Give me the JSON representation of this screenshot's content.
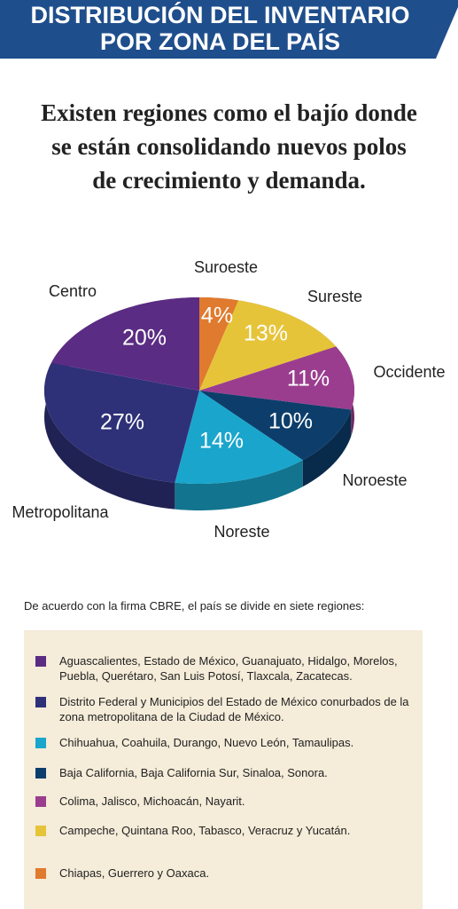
{
  "header": {
    "title_lines": [
      "DISTRIBUCIÓN DEL INVENTARIO",
      "POR ZONA DEL PAÍS"
    ]
  },
  "subtitle_lines": [
    "Existen regiones como el bajío donde",
    "se están consolidando nuevos polos",
    "de crecimiento y demanda."
  ],
  "chart_data": {
    "type": "pie",
    "categories": [
      "Suroeste",
      "Sureste",
      "Occidente",
      "Noroeste",
      "Noreste",
      "Metropolitana",
      "Centro"
    ],
    "values": [
      4,
      13,
      11,
      10,
      14,
      27,
      20
    ],
    "value_labels": [
      "4%",
      "13%",
      "11%",
      "10%",
      "14%",
      "27%",
      "20%"
    ],
    "colors": [
      "#e07a2e",
      "#e6c43a",
      "#9b3d8f",
      "#0d3e6b",
      "#1aa6cc",
      "#2e3178",
      "#5b2c83"
    ]
  },
  "regions_note": "De acuerdo con la firma CBRE, el país se divide en siete regiones:",
  "regions": [
    {
      "color": "#5b2c83",
      "text": "Aguascalientes, Estado de México, Guanajuato, Hidalgo, Morelos, Puebla, Querétaro, San Luis Potosí, Tlaxcala, Zacatecas."
    },
    {
      "color": "#2e3178",
      "text": "Distrito Federal y Municipios del Estado de México conurbados de la zona metropolitana de la Ciudad de México."
    },
    {
      "color": "#1aa6cc",
      "text": "Chihuahua, Coahuila, Durango, Nuevo León, Tamaulipas."
    },
    {
      "color": "#0d3e6b",
      "text": "Baja California, Baja California Sur, Sinaloa, Sonora."
    },
    {
      "color": "#9b3d8f",
      "text": "Colima, Jalisco, Michoacán, Nayarit."
    },
    {
      "color": "#e6c43a",
      "text": "Campeche, Quintana Roo, Tabasco, Veracruz y Yucatán."
    },
    {
      "color": "#e07a2e",
      "text": "Chiapas, Guerrero y Oaxaca."
    }
  ]
}
